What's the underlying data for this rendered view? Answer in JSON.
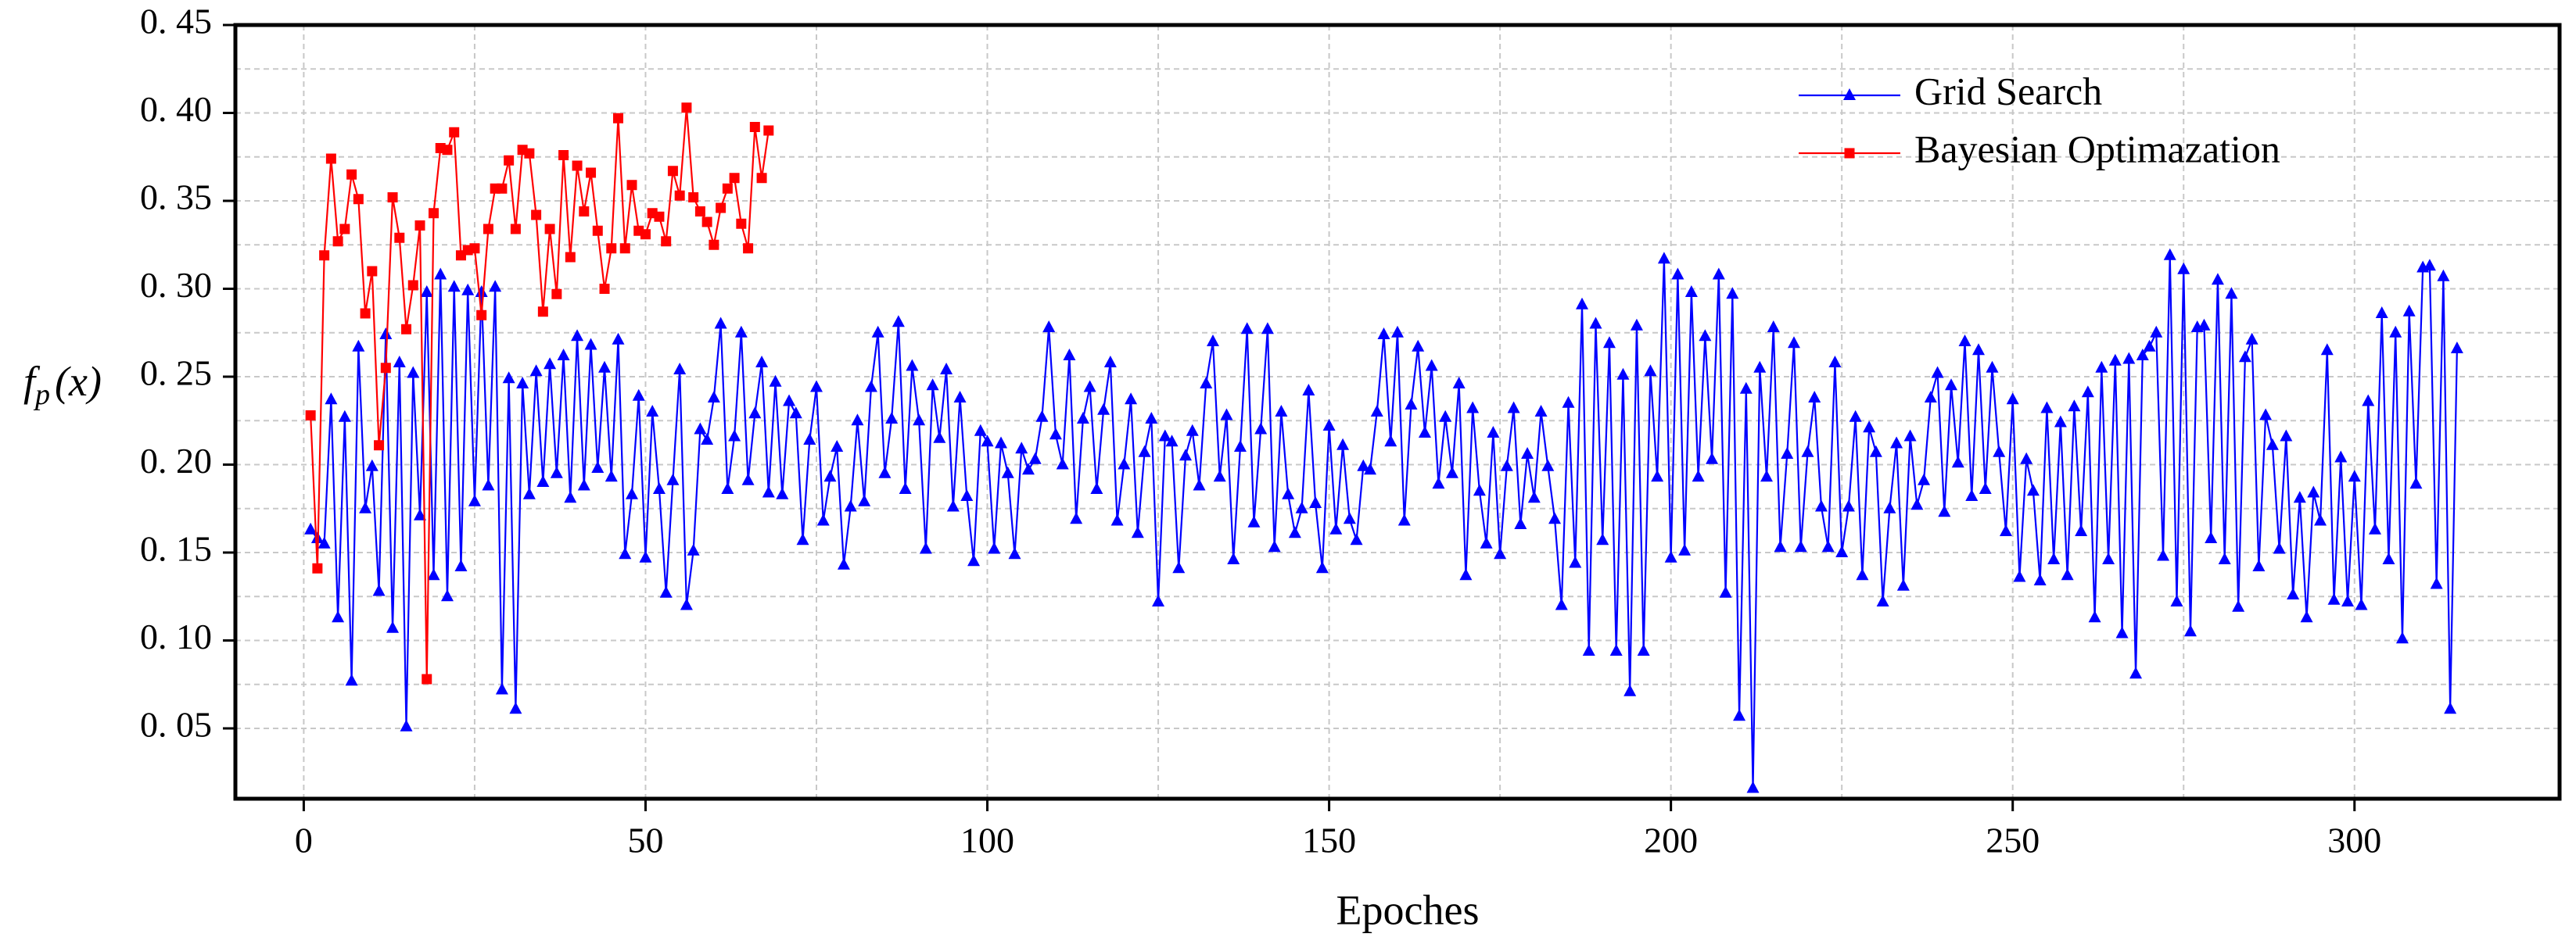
{
  "chart_data": {
    "type": "line",
    "xlabel": "Epoches",
    "ylabel": [
      "f",
      "p",
      "(x)"
    ],
    "xlim": [
      -10,
      330
    ],
    "xticks": [
      0,
      50,
      100,
      150,
      200,
      250,
      300
    ],
    "ylim": [
      0.01,
      0.45
    ],
    "yticks": [
      {
        "value": 0.05,
        "label": "0. 05"
      },
      {
        "value": 0.1,
        "label": "0. 10"
      },
      {
        "value": 0.15,
        "label": "0. 15"
      },
      {
        "value": 0.2,
        "label": "0. 20"
      },
      {
        "value": 0.25,
        "label": "0. 25"
      },
      {
        "value": 0.3,
        "label": "0. 30"
      },
      {
        "value": 0.35,
        "label": "0. 35"
      },
      {
        "value": 0.4,
        "label": "0. 40"
      },
      {
        "value": 0.45,
        "label": "0. 45"
      }
    ],
    "grid": true,
    "legend": "upper right",
    "series": [
      {
        "name": "Grid Search",
        "color": "#0000ff",
        "marker": "triangle",
        "x": [
          1,
          2,
          3,
          4,
          5,
          6,
          7,
          8,
          9,
          10,
          11,
          12,
          13,
          14,
          15,
          16,
          17,
          18,
          19,
          20,
          21,
          22,
          23,
          24,
          25,
          26,
          27,
          28,
          29,
          30,
          31,
          32,
          33,
          34,
          35,
          36,
          37,
          38,
          39,
          40,
          41,
          42,
          43,
          44,
          45,
          46,
          47,
          48,
          49,
          50,
          51,
          52,
          53,
          54,
          55,
          56,
          57,
          58,
          59,
          60,
          61,
          62,
          63,
          64,
          65,
          66,
          67,
          68,
          69,
          70,
          71,
          72,
          73,
          74,
          75,
          76,
          77,
          78,
          79,
          80,
          81,
          82,
          83,
          84,
          85,
          86,
          87,
          88,
          89,
          90,
          91,
          92,
          93,
          94,
          95,
          96,
          97,
          98,
          99,
          100,
          101,
          102,
          103,
          104,
          105,
          106,
          107,
          108,
          109,
          110,
          111,
          112,
          113,
          114,
          115,
          116,
          117,
          118,
          119,
          120,
          121,
          122,
          123,
          124,
          125,
          126,
          127,
          128,
          129,
          130,
          131,
          132,
          133,
          134,
          135,
          136,
          137,
          138,
          139,
          140,
          141,
          142,
          143,
          144,
          145,
          146,
          147,
          148,
          149,
          150,
          151,
          152,
          153,
          154,
          155,
          156,
          157,
          158,
          159,
          160,
          161,
          162,
          163,
          164,
          165,
          166,
          167,
          168,
          169,
          170,
          171,
          172,
          173,
          174,
          175,
          176,
          177,
          178,
          179,
          180,
          181,
          182,
          183,
          184,
          185,
          186,
          187,
          188,
          189,
          190,
          191,
          192,
          193,
          194,
          195,
          196,
          197,
          198,
          199,
          200,
          201,
          202,
          203,
          204,
          205,
          206,
          207,
          208,
          209,
          210,
          211,
          212,
          213,
          214,
          215,
          216,
          217,
          218,
          219,
          220,
          221,
          222,
          223,
          224,
          225,
          226,
          227,
          228,
          229,
          230,
          231,
          232,
          233,
          234,
          235,
          236,
          237,
          238,
          239,
          240,
          241,
          242,
          243,
          244,
          245,
          246,
          247,
          248,
          249,
          250,
          251,
          252,
          253,
          254,
          255,
          256,
          257,
          258,
          259,
          260,
          261,
          262,
          263,
          264,
          265,
          266,
          267,
          268,
          269,
          270,
          271,
          272,
          273,
          274,
          275,
          276,
          277,
          278,
          279,
          280,
          281,
          282,
          283,
          284,
          285,
          286,
          287,
          288,
          289,
          290,
          291,
          292,
          293,
          294,
          295,
          296,
          297,
          298,
          299,
          300,
          301,
          302,
          303,
          304,
          305,
          306,
          307,
          308,
          309,
          310,
          311,
          312,
          313,
          314,
          315
        ],
        "values": [
          0.163,
          0.158,
          0.155,
          0.237,
          0.113,
          0.227,
          0.077,
          0.267,
          0.175,
          0.199,
          0.128,
          0.274,
          0.107,
          0.258,
          0.051,
          0.252,
          0.171,
          0.298,
          0.137,
          0.308,
          0.125,
          0.301,
          0.142,
          0.299,
          0.179,
          0.298,
          0.188,
          0.301,
          0.072,
          0.249,
          0.061,
          0.246,
          0.183,
          0.253,
          0.19,
          0.257,
          0.195,
          0.262,
          0.181,
          0.273,
          0.188,
          0.268,
          0.198,
          0.255,
          0.193,
          0.271,
          0.149,
          0.183,
          0.239,
          0.147,
          0.23,
          0.186,
          0.127,
          0.191,
          0.254,
          0.12,
          0.151,
          0.22,
          0.214,
          0.238,
          0.28,
          0.186,
          0.216,
          0.275,
          0.191,
          0.229,
          0.258,
          0.184,
          0.247,
          0.183,
          0.236,
          0.229,
          0.157,
          0.214,
          0.244,
          0.168,
          0.193,
          0.21,
          0.143,
          0.176,
          0.225,
          0.179,
          0.244,
          0.275,
          0.195,
          0.226,
          0.281,
          0.186,
          0.256,
          0.225,
          0.152,
          0.245,
          0.215,
          0.254,
          0.176,
          0.238,
          0.182,
          0.145,
          0.219,
          0.213,
          0.152,
          0.212,
          0.195,
          0.149,
          0.209,
          0.197,
          0.203,
          0.227,
          0.278,
          0.217,
          0.2,
          0.262,
          0.169,
          0.226,
          0.244,
          0.186,
          0.231,
          0.258,
          0.168,
          0.2,
          0.237,
          0.161,
          0.207,
          0.226,
          0.122,
          0.216,
          0.213,
          0.141,
          0.205,
          0.219,
          0.188,
          0.246,
          0.27,
          0.193,
          0.228,
          0.146,
          0.21,
          0.277,
          0.167,
          0.22,
          0.277,
          0.153,
          0.23,
          0.183,
          0.161,
          0.175,
          0.242,
          0.178,
          0.141,
          0.222,
          0.163,
          0.211,
          0.169,
          0.157,
          0.199,
          0.197,
          0.23,
          0.274,
          0.213,
          0.275,
          0.168,
          0.234,
          0.267,
          0.218,
          0.256,
          0.189,
          0.227,
          0.195,
          0.246,
          0.137,
          0.232,
          0.185,
          0.155,
          0.218,
          0.149,
          0.199,
          0.232,
          0.166,
          0.206,
          0.181,
          0.23,
          0.199,
          0.169,
          0.12,
          0.235,
          0.144,
          0.291,
          0.094,
          0.28,
          0.157,
          0.269,
          0.094,
          0.251,
          0.071,
          0.279,
          0.094,
          0.253,
          0.193,
          0.317,
          0.147,
          0.308,
          0.151,
          0.298,
          0.193,
          0.273,
          0.203,
          0.308,
          0.127,
          0.297,
          0.057,
          0.243,
          0.016,
          0.255,
          0.193,
          0.278,
          0.153,
          0.206,
          0.269,
          0.153,
          0.207,
          0.238,
          0.176,
          0.153,
          0.258,
          0.15,
          0.176,
          0.227,
          0.137,
          0.221,
          0.207,
          0.122,
          0.175,
          0.212,
          0.131,
          0.216,
          0.177,
          0.191,
          0.238,
          0.252,
          0.173,
          0.245,
          0.201,
          0.27,
          0.182,
          0.265,
          0.186,
          0.255,
          0.207,
          0.162,
          0.237,
          0.136,
          0.203,
          0.185,
          0.134,
          0.232,
          0.146,
          0.224,
          0.137,
          0.233,
          0.162,
          0.241,
          0.113,
          0.255,
          0.146,
          0.259,
          0.104,
          0.26,
          0.081,
          0.262,
          0.267,
          0.275,
          0.148,
          0.319,
          0.122,
          0.311,
          0.105,
          0.278,
          0.279,
          0.158,
          0.305,
          0.146,
          0.297,
          0.119,
          0.261,
          0.271,
          0.142,
          0.228,
          0.211,
          0.152,
          0.216,
          0.126,
          0.181,
          0.113,
          0.184,
          0.168,
          0.265,
          0.123,
          0.204,
          0.122,
          0.193,
          0.12,
          0.236,
          0.163,
          0.286,
          0.146,
          0.275,
          0.101,
          0.287,
          0.189,
          0.312,
          0.313,
          0.132,
          0.307,
          0.061,
          0.266
        ]
      },
      {
        "name": "Bayesian Optimazation",
        "color": "#ff0000",
        "marker": "square",
        "x": [
          1,
          2,
          3,
          4,
          5,
          6,
          7,
          8,
          9,
          10,
          11,
          12,
          13,
          14,
          15,
          16,
          17,
          18,
          19,
          20,
          21,
          22,
          23,
          24,
          25,
          26,
          27,
          28,
          29,
          30,
          31,
          32,
          33,
          34,
          35,
          36,
          37,
          38,
          39,
          40,
          41,
          42,
          43,
          44,
          45,
          46,
          47,
          48,
          49,
          50,
          51,
          52,
          53,
          54,
          55,
          56,
          57,
          58,
          59,
          60,
          61,
          62,
          63,
          64,
          65,
          66,
          67,
          68
        ],
        "values": [
          0.228,
          0.141,
          0.319,
          0.374,
          0.327,
          0.334,
          0.365,
          0.351,
          0.286,
          0.31,
          0.211,
          0.255,
          0.352,
          0.329,
          0.277,
          0.302,
          0.336,
          0.078,
          0.343,
          0.38,
          0.379,
          0.389,
          0.319,
          0.322,
          0.323,
          0.285,
          0.334,
          0.357,
          0.357,
          0.373,
          0.334,
          0.379,
          0.377,
          0.342,
          0.287,
          0.334,
          0.297,
          0.376,
          0.318,
          0.37,
          0.344,
          0.366,
          0.333,
          0.3,
          0.323,
          0.397,
          0.323,
          0.359,
          0.333,
          0.331,
          0.343,
          0.341,
          0.327,
          0.367,
          0.353,
          0.403,
          0.352,
          0.344,
          0.338,
          0.325,
          0.346,
          0.357,
          0.363,
          0.337,
          0.323,
          0.392,
          0.363,
          0.39
        ]
      }
    ]
  }
}
